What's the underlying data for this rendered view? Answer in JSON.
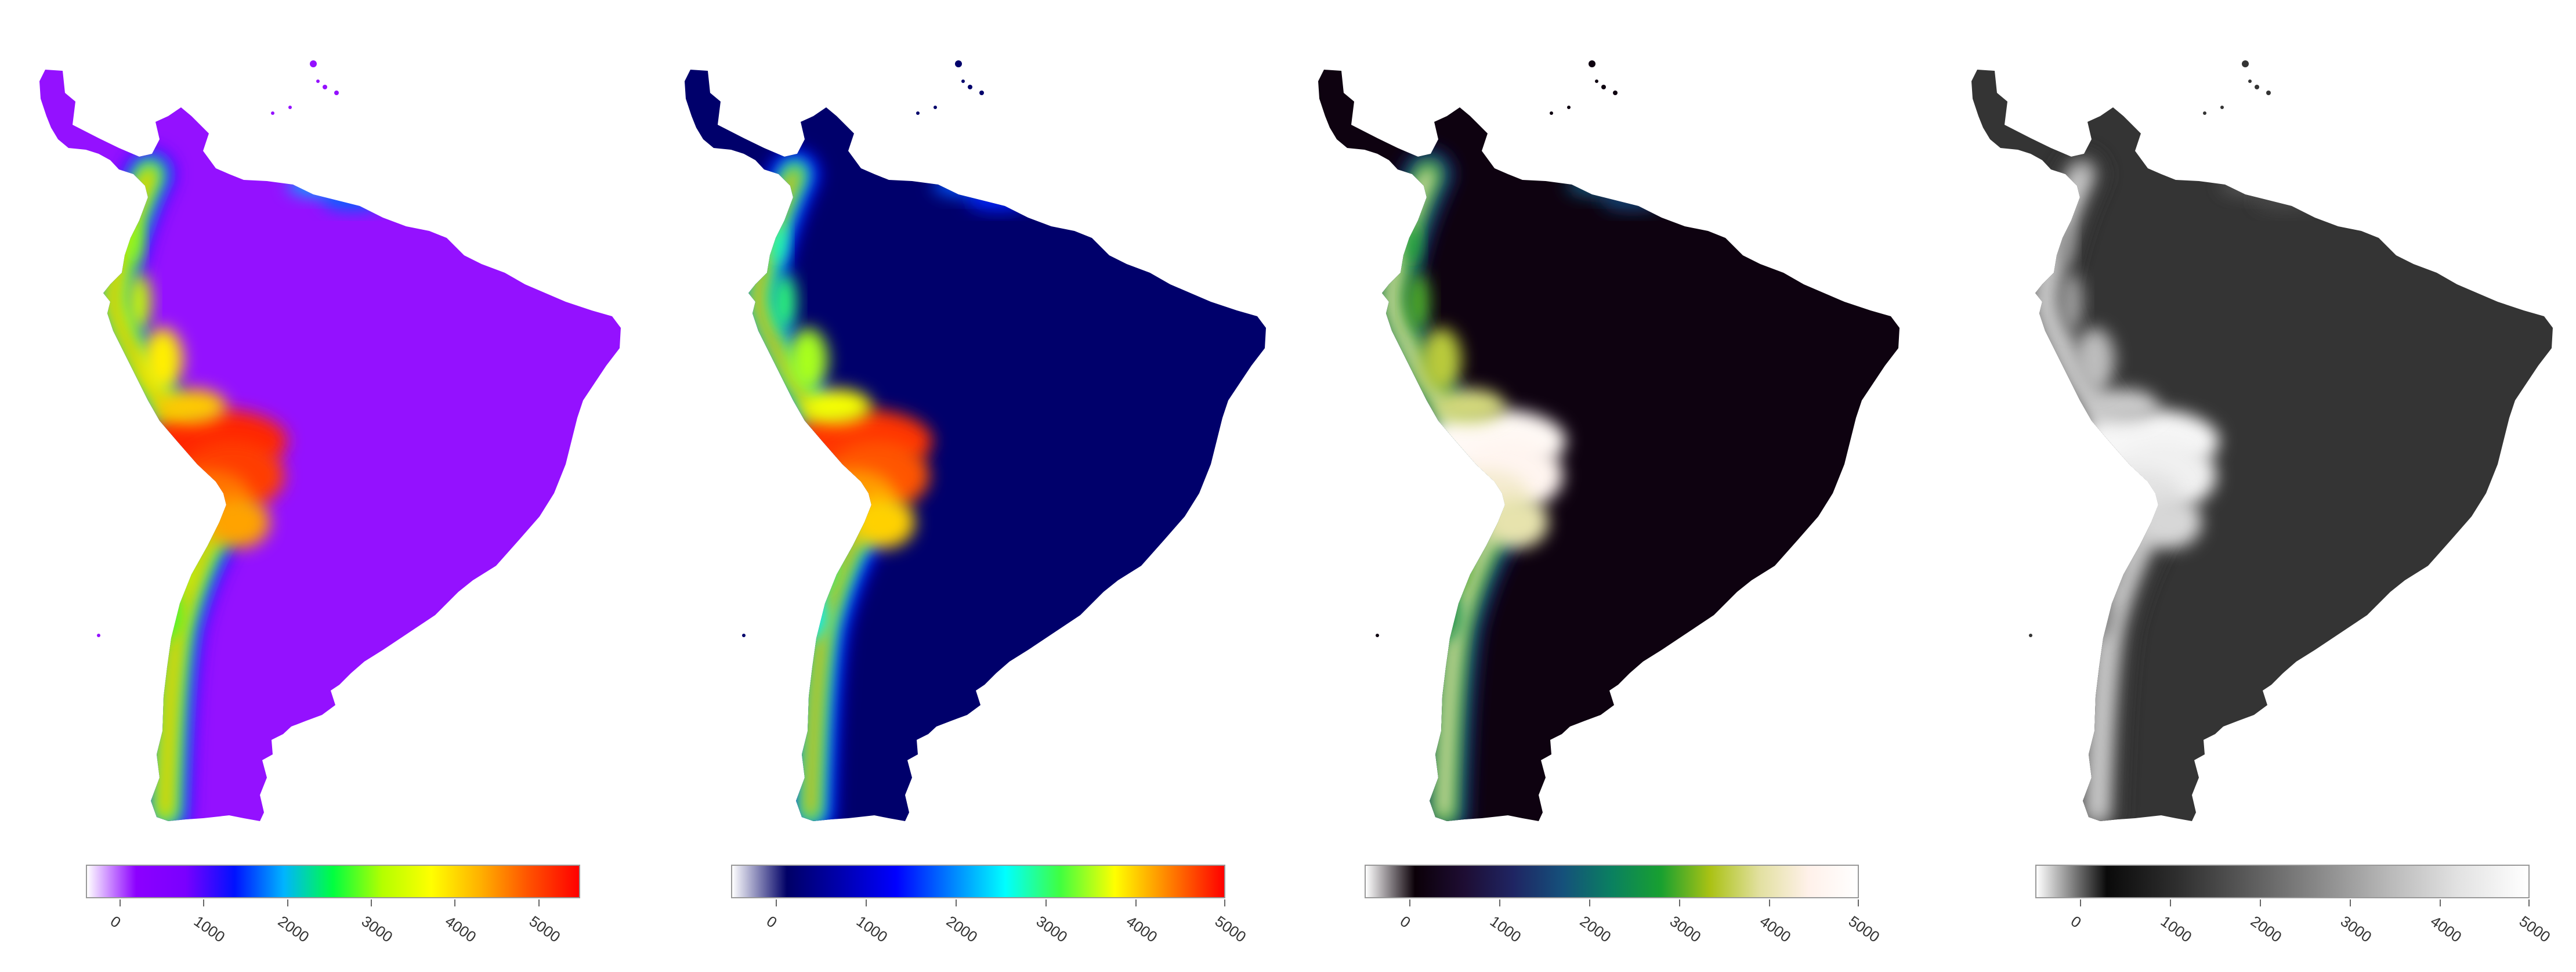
{
  "panels": [
    {
      "colormap": "rainbow",
      "stops": [
        "#ffffff",
        "#8c00ff",
        "#7a00ff",
        "#0011ff",
        "#00b4ff",
        "#00ff40",
        "#b4ff00",
        "#ffff00",
        "#ffb000",
        "#ff5000",
        "#ff0000"
      ],
      "value_range": [
        -400,
        5500
      ],
      "ticks": [
        "0",
        "1000",
        "2000",
        "3000",
        "4000",
        "5000"
      ]
    },
    {
      "colormap": "jet",
      "stops": [
        "#ffffff",
        "#000066",
        "#0000b0",
        "#0000ff",
        "#0080ff",
        "#00ffff",
        "#40ff40",
        "#ffff00",
        "#ff8000",
        "#ff0000"
      ],
      "value_range": [
        -500,
        5000
      ],
      "ticks": [
        "0",
        "1000",
        "2000",
        "3000",
        "4000",
        "5000"
      ]
    },
    {
      "colormap": "topo",
      "stops": [
        "#ffffff",
        "#0b0008",
        "#1e0d33",
        "#1f2563",
        "#15507b",
        "#0a8060",
        "#18a030",
        "#aac214",
        "#e2e0a0",
        "#fff1ea",
        "#ffffff"
      ],
      "value_range": [
        -500,
        5000
      ],
      "ticks": [
        "0",
        "1000",
        "2000",
        "3000",
        "4000",
        "5000"
      ]
    },
    {
      "colormap": "gray",
      "stops": [
        "#ffffff",
        "#0a0a0a",
        "#2e2e2e",
        "#5a5a5a",
        "#888888",
        "#b8b8b8",
        "#e2e2e2",
        "#ffffff"
      ],
      "value_range": [
        -500,
        5000
      ],
      "ticks": [
        "0",
        "1000",
        "2000",
        "3000",
        "4000",
        "5000"
      ]
    }
  ],
  "landmass": {
    "base_elevation": 150,
    "peak_elevation": 5000
  }
}
